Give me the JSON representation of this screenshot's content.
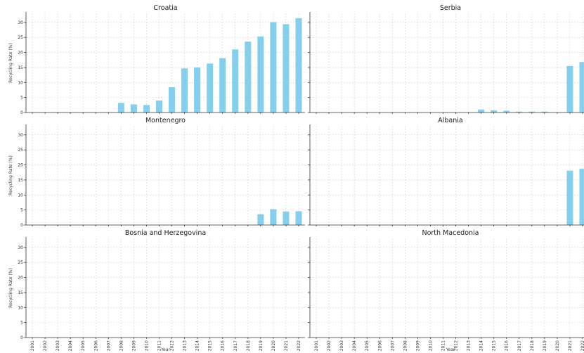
{
  "chart_data": [
    {
      "type": "bar",
      "title": "Croatia",
      "categories": [
        "2001",
        "2002",
        "2003",
        "2004",
        "2005",
        "2006",
        "2007",
        "2008",
        "2009",
        "2010",
        "2011",
        "2012",
        "2013",
        "2014",
        "2015",
        "2016",
        "2017",
        "2018",
        "2019",
        "2020",
        "2021",
        "2022"
      ],
      "values": [
        0.1,
        0.1,
        0.1,
        0.1,
        0.1,
        0.1,
        0.1,
        3.2,
        2.7,
        2.5,
        4.0,
        8.4,
        14.7,
        15.0,
        16.3,
        18.1,
        21.0,
        23.6,
        25.3,
        30.1,
        29.4,
        31.4
      ],
      "xlabel": "",
      "ylabel": "Recycling Rate (%)",
      "ylim": [
        0,
        33
      ],
      "yticks": [
        0,
        5,
        10,
        15,
        20,
        25,
        30
      ],
      "grid": true
    },
    {
      "type": "bar",
      "title": "Serbia",
      "categories": [
        "2001",
        "2002",
        "2003",
        "2004",
        "2005",
        "2006",
        "2007",
        "2008",
        "2009",
        "2010",
        "2011",
        "2012",
        "2013",
        "2014",
        "2015",
        "2016",
        "2017",
        "2018",
        "2019",
        "2020",
        "2021",
        "2022"
      ],
      "values": [
        null,
        null,
        null,
        null,
        null,
        null,
        null,
        null,
        null,
        null,
        null,
        null,
        null,
        1.0,
        0.7,
        0.6,
        0.3,
        0.3,
        0.3,
        null,
        15.5,
        16.8
      ],
      "xlabel": "",
      "ylabel": "",
      "ylim": [
        0,
        33
      ],
      "yticks": [
        0,
        5,
        10,
        15,
        20,
        25,
        30
      ],
      "grid": true
    },
    {
      "type": "bar",
      "title": "Montenegro",
      "categories": [
        "2001",
        "2002",
        "2003",
        "2004",
        "2005",
        "2006",
        "2007",
        "2008",
        "2009",
        "2010",
        "2011",
        "2012",
        "2013",
        "2014",
        "2015",
        "2016",
        "2017",
        "2018",
        "2019",
        "2020",
        "2021",
        "2022"
      ],
      "values": [
        null,
        null,
        null,
        null,
        null,
        null,
        null,
        null,
        null,
        null,
        null,
        null,
        null,
        null,
        null,
        null,
        null,
        null,
        3.6,
        5.3,
        4.5,
        4.6
      ],
      "xlabel": "",
      "ylabel": "Recycling Rate (%)",
      "ylim": [
        0,
        33
      ],
      "yticks": [
        0,
        5,
        10,
        15,
        20,
        25,
        30
      ],
      "grid": true
    },
    {
      "type": "bar",
      "title": "Albania",
      "categories": [
        "2001",
        "2002",
        "2003",
        "2004",
        "2005",
        "2006",
        "2007",
        "2008",
        "2009",
        "2010",
        "2011",
        "2012",
        "2013",
        "2014",
        "2015",
        "2016",
        "2017",
        "2018",
        "2019",
        "2020",
        "2021",
        "2022"
      ],
      "values": [
        null,
        null,
        null,
        null,
        null,
        null,
        null,
        null,
        null,
        null,
        null,
        null,
        null,
        null,
        null,
        null,
        null,
        null,
        null,
        null,
        18.1,
        18.7
      ],
      "xlabel": "",
      "ylabel": "",
      "ylim": [
        0,
        33
      ],
      "yticks": [
        0,
        5,
        10,
        15,
        20,
        25,
        30
      ],
      "grid": true
    },
    {
      "type": "bar",
      "title": "Bosnia and Herzegovina",
      "categories": [
        "2001",
        "2002",
        "2003",
        "2004",
        "2005",
        "2006",
        "2007",
        "2008",
        "2009",
        "2010",
        "2011",
        "2012",
        "2013",
        "2014",
        "2015",
        "2016",
        "2017",
        "2018",
        "2019",
        "2020",
        "2021",
        "2022"
      ],
      "values": [
        null,
        null,
        null,
        null,
        null,
        null,
        null,
        null,
        null,
        null,
        null,
        null,
        null,
        null,
        null,
        null,
        null,
        null,
        null,
        null,
        null,
        null
      ],
      "xlabel": "Year",
      "ylabel": "Recycling Rate (%)",
      "ylim": [
        0,
        33
      ],
      "yticks": [
        0,
        5,
        10,
        15,
        20,
        25,
        30
      ],
      "grid": true
    },
    {
      "type": "bar",
      "title": "North Macedonia",
      "categories": [
        "2001",
        "2002",
        "2003",
        "2004",
        "2005",
        "2006",
        "2007",
        "2008",
        "2009",
        "2010",
        "2011",
        "2012",
        "2013",
        "2014",
        "2015",
        "2016",
        "2017",
        "2018",
        "2019",
        "2020",
        "2021",
        "2022"
      ],
      "values": [
        null,
        null,
        null,
        null,
        null,
        null,
        null,
        null,
        null,
        null,
        null,
        null,
        null,
        null,
        null,
        null,
        null,
        null,
        null,
        null,
        null,
        null
      ],
      "xlabel": "Year",
      "ylabel": "",
      "ylim": [
        0,
        33
      ],
      "yticks": [
        0,
        5,
        10,
        15,
        20,
        25,
        30
      ],
      "grid": true
    }
  ]
}
